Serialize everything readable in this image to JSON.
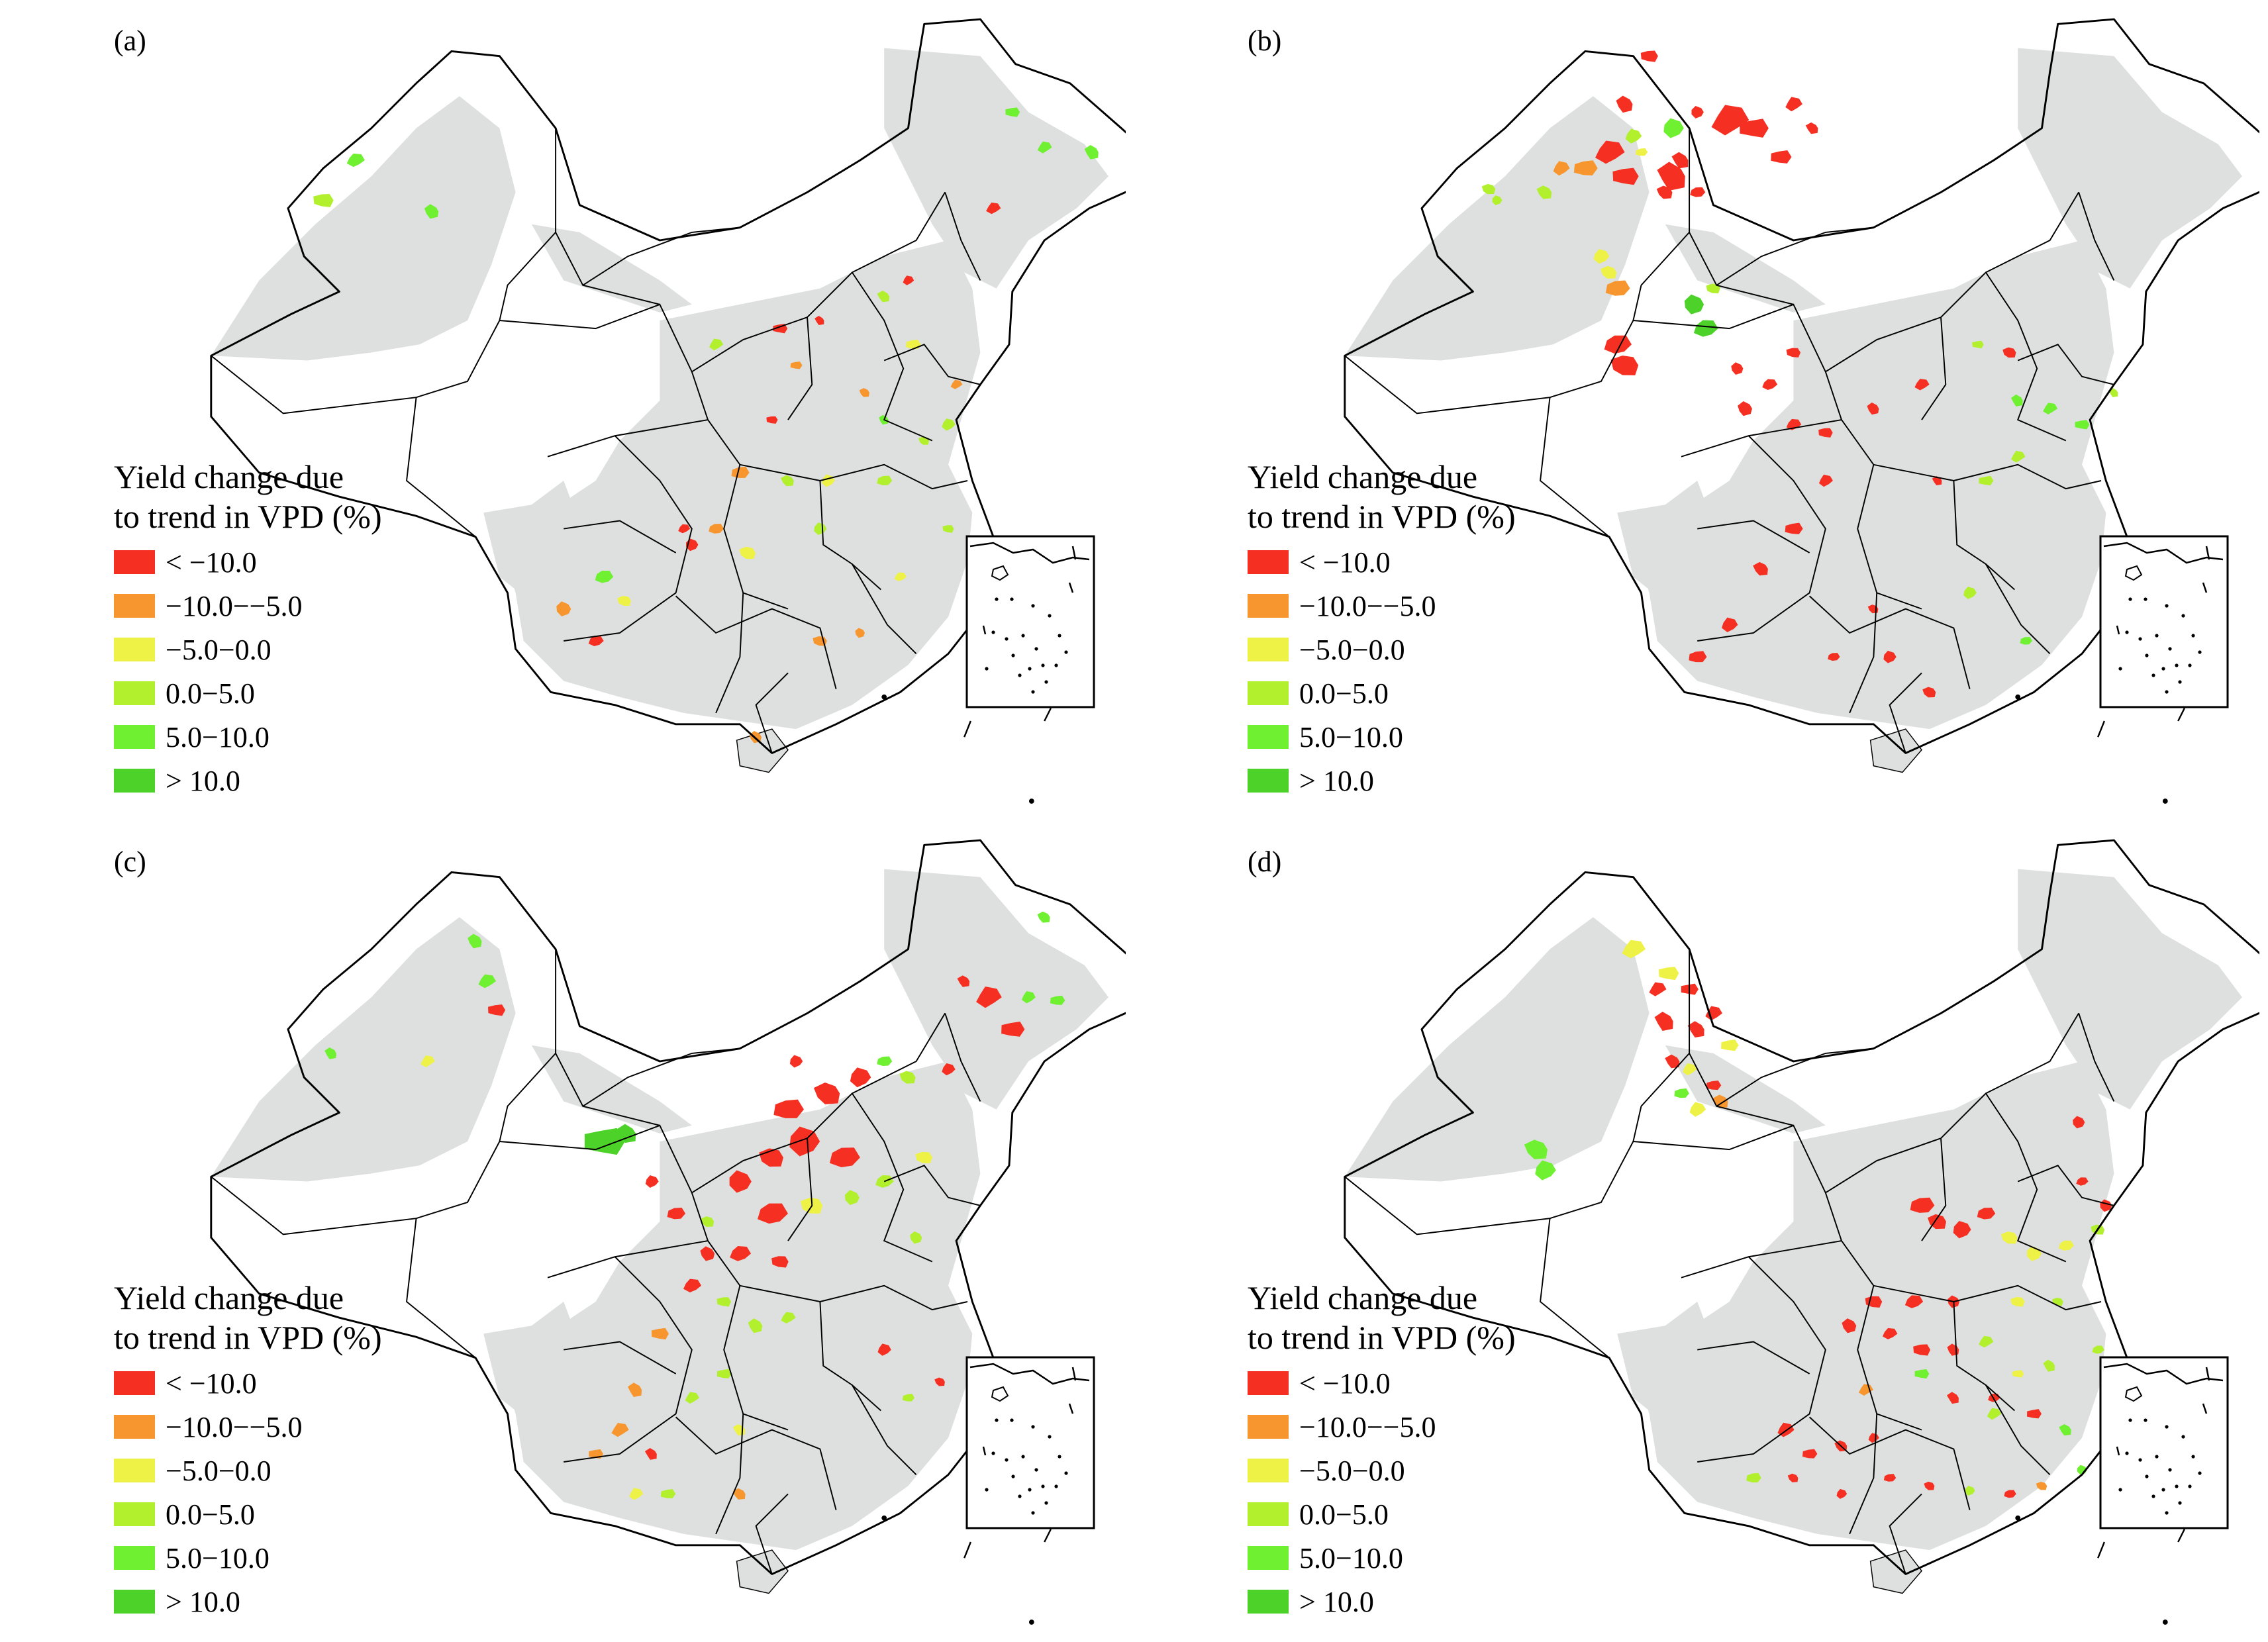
{
  "panels": [
    {
      "id": "a",
      "label": "(a)"
    },
    {
      "id": "b",
      "label": "(b)"
    },
    {
      "id": "c",
      "label": "(c)"
    },
    {
      "id": "d",
      "label": "(d)"
    }
  ],
  "legend": {
    "title_line1": "Yield change due",
    "title_line2": "to trend in VPD (%)",
    "items": [
      {
        "label": "< −10.0",
        "color": "#f53022"
      },
      {
        "label": "−10.0−−5.0",
        "color": "#f7962e"
      },
      {
        "label": "−5.0−0.0",
        "color": "#eef246"
      },
      {
        "label": "0.0−5.0",
        "color": "#b2f02e"
      },
      {
        "label": "5.0−10.0",
        "color": "#6ff030"
      },
      {
        "label": "> 10.0",
        "color": "#4cd228"
      }
    ]
  },
  "colors": {
    "land": "#dde0df",
    "border": "#000000"
  }
}
